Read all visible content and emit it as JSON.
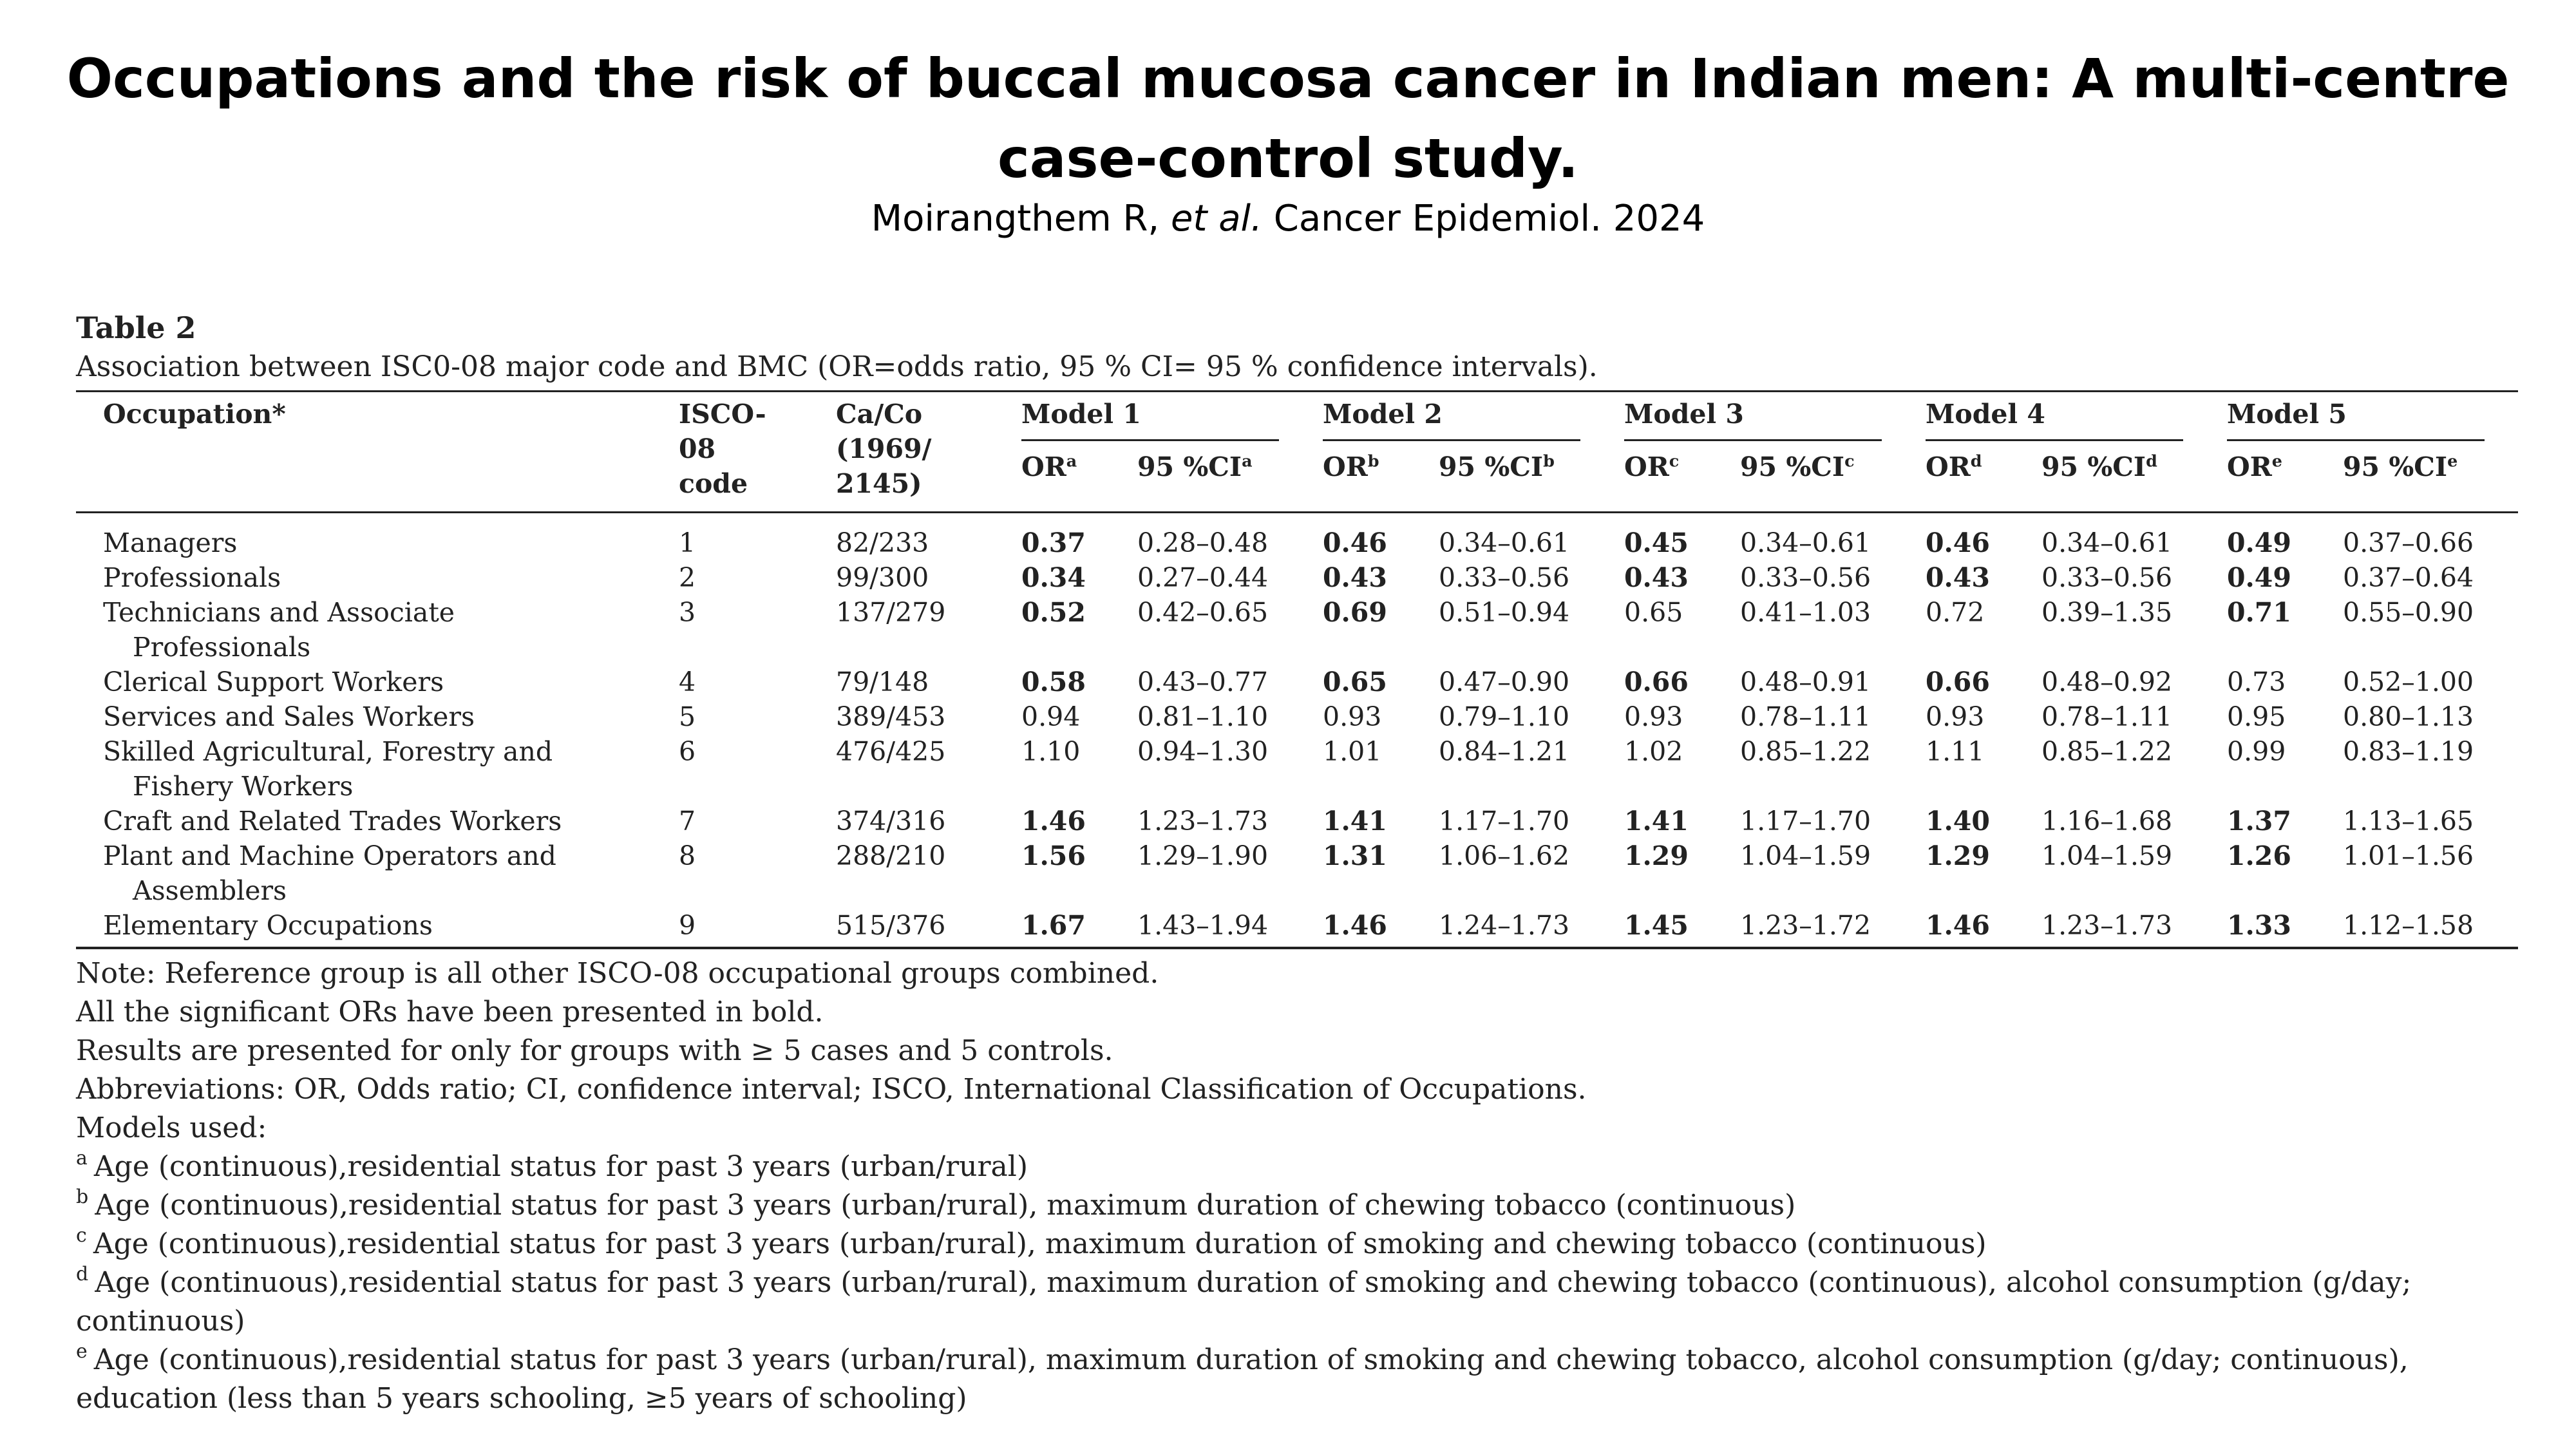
{
  "slide": {
    "title": "Occupations and the risk of buccal mucosa cancer in Indian men: A multi-centre case-control study.",
    "citation_authors": "Moirangthem R, ",
    "citation_etal": "et al.",
    "citation_journal": " Cancer Epidemiol. 2024"
  },
  "table": {
    "label": "Table 2",
    "caption": "Association between ISC0-08 major code and BMC (OR=odds ratio, 95 % CI= 95 % confidence intervals).",
    "headers": {
      "occupation": "Occupation*",
      "isco": [
        "ISCO-",
        "08",
        "code"
      ],
      "caco": [
        "Ca/Co",
        "(1969/",
        "2145)"
      ],
      "models": [
        "Model 1",
        "Model 2",
        "Model 3",
        "Model 4",
        "Model 5"
      ],
      "or_label": "OR",
      "ci_label": "95 %CI",
      "superscripts": [
        "a",
        "b",
        "c",
        "d",
        "e"
      ]
    },
    "rows": [
      {
        "occupation": [
          "Managers"
        ],
        "code": "1",
        "caco": "82/233",
        "models": [
          {
            "or": "0.37",
            "ci": "0.28–0.48",
            "bold": true
          },
          {
            "or": "0.46",
            "ci": "0.34–0.61",
            "bold": true
          },
          {
            "or": "0.45",
            "ci": "0.34–0.61",
            "bold": true
          },
          {
            "or": "0.46",
            "ci": "0.34–0.61",
            "bold": true
          },
          {
            "or": "0.49",
            "ci": "0.37–0.66",
            "bold": true
          }
        ]
      },
      {
        "occupation": [
          "Professionals"
        ],
        "code": "2",
        "caco": "99/300",
        "models": [
          {
            "or": "0.34",
            "ci": "0.27–0.44",
            "bold": true
          },
          {
            "or": "0.43",
            "ci": "0.33–0.56",
            "bold": true
          },
          {
            "or": "0.43",
            "ci": "0.33–0.56",
            "bold": true
          },
          {
            "or": "0.43",
            "ci": "0.33–0.56",
            "bold": true
          },
          {
            "or": "0.49",
            "ci": "0.37–0.64",
            "bold": true
          }
        ]
      },
      {
        "occupation": [
          "Technicians and Associate",
          "Professionals"
        ],
        "code": "3",
        "caco": "137/279",
        "models": [
          {
            "or": "0.52",
            "ci": "0.42–0.65",
            "bold": true
          },
          {
            "or": "0.69",
            "ci": "0.51–0.94",
            "bold": true
          },
          {
            "or": "0.65",
            "ci": "0.41–1.03",
            "bold": false
          },
          {
            "or": "0.72",
            "ci": "0.39–1.35",
            "bold": false
          },
          {
            "or": "0.71",
            "ci": "0.55–0.90",
            "bold": true
          }
        ]
      },
      {
        "occupation": [
          "Clerical Support Workers"
        ],
        "code": "4",
        "caco": "79/148",
        "models": [
          {
            "or": "0.58",
            "ci": "0.43–0.77",
            "bold": true
          },
          {
            "or": "0.65",
            "ci": "0.47–0.90",
            "bold": true
          },
          {
            "or": "0.66",
            "ci": "0.48–0.91",
            "bold": true
          },
          {
            "or": "0.66",
            "ci": "0.48–0.92",
            "bold": true
          },
          {
            "or": "0.73",
            "ci": "0.52–1.00",
            "bold": false
          }
        ]
      },
      {
        "occupation": [
          "Services and Sales Workers"
        ],
        "code": "5",
        "caco": "389/453",
        "models": [
          {
            "or": "0.94",
            "ci": "0.81–1.10",
            "bold": false
          },
          {
            "or": "0.93",
            "ci": "0.79–1.10",
            "bold": false
          },
          {
            "or": "0.93",
            "ci": "0.78–1.11",
            "bold": false
          },
          {
            "or": "0.93",
            "ci": "0.78–1.11",
            "bold": false
          },
          {
            "or": "0.95",
            "ci": "0.80–1.13",
            "bold": false
          }
        ]
      },
      {
        "occupation": [
          "Skilled Agricultural, Forestry and",
          "Fishery Workers"
        ],
        "code": "6",
        "caco": "476/425",
        "models": [
          {
            "or": "1.10",
            "ci": "0.94–1.30",
            "bold": false
          },
          {
            "or": "1.01",
            "ci": "0.84–1.21",
            "bold": false
          },
          {
            "or": "1.02",
            "ci": "0.85–1.22",
            "bold": false
          },
          {
            "or": "1.11",
            "ci": "0.85–1.22",
            "bold": false
          },
          {
            "or": "0.99",
            "ci": "0.83–1.19",
            "bold": false
          }
        ]
      },
      {
        "occupation": [
          "Craft and Related Trades Workers"
        ],
        "code": "7",
        "caco": "374/316",
        "models": [
          {
            "or": "1.46",
            "ci": "1.23–1.73",
            "bold": true
          },
          {
            "or": "1.41",
            "ci": "1.17–1.70",
            "bold": true
          },
          {
            "or": "1.41",
            "ci": "1.17–1.70",
            "bold": true
          },
          {
            "or": "1.40",
            "ci": "1.16–1.68",
            "bold": true
          },
          {
            "or": "1.37",
            "ci": "1.13–1.65",
            "bold": true
          }
        ]
      },
      {
        "occupation": [
          "Plant and Machine Operators and",
          "Assemblers"
        ],
        "code": "8",
        "caco": "288/210",
        "models": [
          {
            "or": "1.56",
            "ci": "1.29–1.90",
            "bold": true
          },
          {
            "or": "1.31",
            "ci": "1.06–1.62",
            "bold": true
          },
          {
            "or": "1.29",
            "ci": "1.04–1.59",
            "bold": true
          },
          {
            "or": "1.29",
            "ci": "1.04–1.59",
            "bold": true
          },
          {
            "or": "1.26",
            "ci": "1.01–1.56",
            "bold": true
          }
        ]
      },
      {
        "occupation": [
          "Elementary Occupations"
        ],
        "code": "9",
        "caco": "515/376",
        "models": [
          {
            "or": "1.67",
            "ci": "1.43–1.94",
            "bold": true
          },
          {
            "or": "1.46",
            "ci": "1.24–1.73",
            "bold": true
          },
          {
            "or": "1.45",
            "ci": "1.23–1.72",
            "bold": true
          },
          {
            "or": "1.46",
            "ci": "1.23–1.73",
            "bold": true
          },
          {
            "or": "1.33",
            "ci": "1.12–1.58",
            "bold": true
          }
        ]
      }
    ]
  },
  "notes": {
    "lines": [
      "Note: Reference group is all other ISCO-08 occupational groups combined.",
      "All the significant ORs have been presented in bold.",
      "Results are presented for only for groups with ≥ 5 cases and 5 controls.",
      "Abbreviations: OR, Odds ratio; CI, confidence interval; ISCO, International Classification of Occupations.",
      "Models used:"
    ],
    "footnotes": [
      {
        "mark": "a",
        "text": "Age (continuous),residential status for past 3 years (urban/rural)"
      },
      {
        "mark": "b",
        "text": "Age (continuous),residential status for past 3 years (urban/rural), maximum duration of chewing tobacco (continuous)"
      },
      {
        "mark": "c",
        "text": "Age (continuous),residential status for past 3 years (urban/rural), maximum duration of smoking and chewing tobacco (continuous)"
      },
      {
        "mark": "d",
        "text": "Age (continuous),residential status for past 3 years (urban/rural), maximum duration of smoking and chewing tobacco (continuous), alcohol consumption (g/day; continuous)"
      },
      {
        "mark": "e",
        "text": "Age (continuous),residential status for past 3 years (urban/rural), maximum duration of smoking and chewing tobacco, alcohol consumption (g/day; continuous), education (less than 5 years schooling, ≥5 years of schooling)"
      }
    ]
  }
}
